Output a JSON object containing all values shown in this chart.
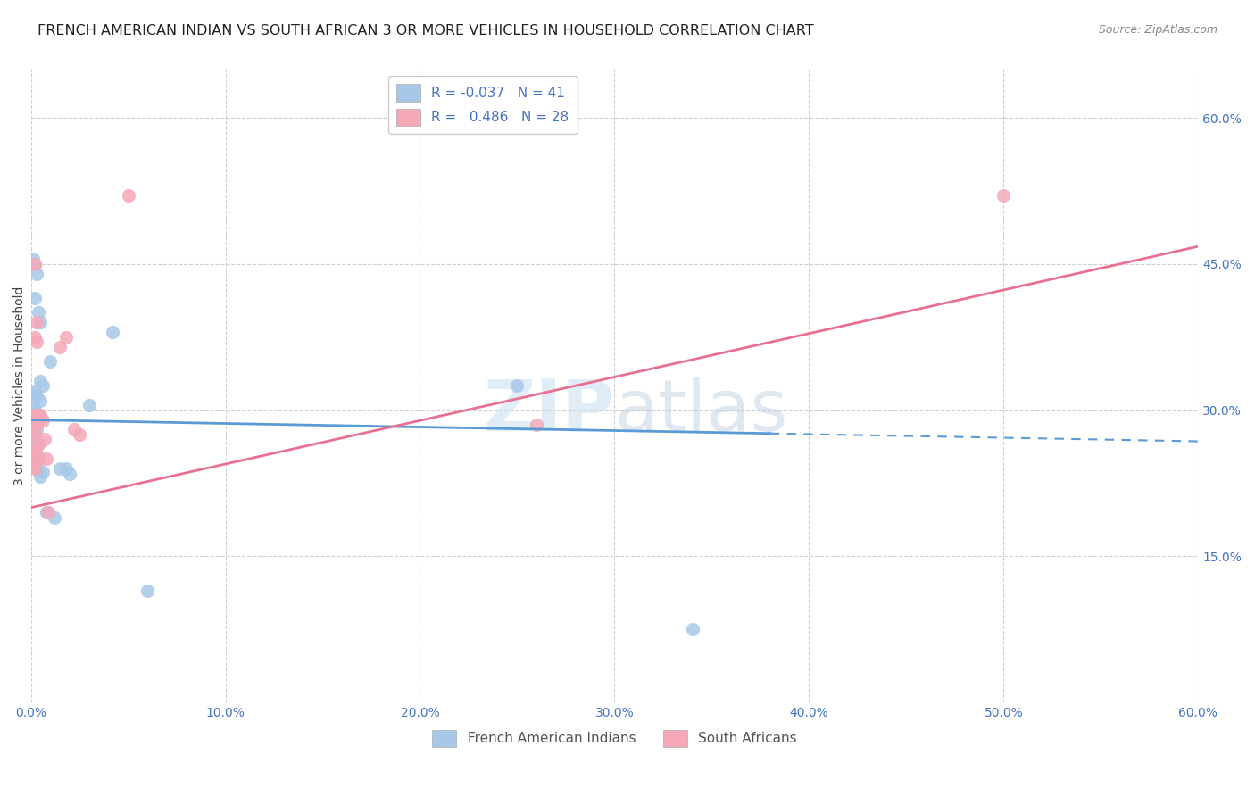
{
  "title": "FRENCH AMERICAN INDIAN VS SOUTH AFRICAN 3 OR MORE VEHICLES IN HOUSEHOLD CORRELATION CHART",
  "source": "Source: ZipAtlas.com",
  "ylabel": "3 or more Vehicles in Household",
  "ytick_values": [
    0.15,
    0.3,
    0.45,
    0.6
  ],
  "xtick_values": [
    0.0,
    0.1,
    0.2,
    0.3,
    0.4,
    0.5,
    0.6
  ],
  "xlim": [
    0.0,
    0.6
  ],
  "ylim": [
    0.0,
    0.65
  ],
  "watermark_zip": "ZIP",
  "watermark_atlas": "atlas",
  "legend_label_blue": "R = -0.037   N = 41",
  "legend_label_pink": "R =   0.486   N = 28",
  "legend_label1": "French American Indians",
  "legend_label2": "South Africans",
  "blue_color": "#a8c8e8",
  "pink_color": "#f4a8b8",
  "blue_line_color": "#5b9bd5",
  "pink_line_color": "#e87090",
  "blue_scatter": [
    [
      0.001,
      0.455
    ],
    [
      0.002,
      0.45
    ],
    [
      0.003,
      0.44
    ],
    [
      0.002,
      0.415
    ],
    [
      0.004,
      0.4
    ],
    [
      0.005,
      0.39
    ],
    [
      0.01,
      0.35
    ],
    [
      0.005,
      0.33
    ],
    [
      0.006,
      0.325
    ],
    [
      0.002,
      0.32
    ],
    [
      0.001,
      0.316
    ],
    [
      0.003,
      0.315
    ],
    [
      0.005,
      0.31
    ],
    [
      0.001,
      0.305
    ],
    [
      0.002,
      0.3
    ],
    [
      0.003,
      0.296
    ],
    [
      0.004,
      0.292
    ],
    [
      0.002,
      0.286
    ],
    [
      0.001,
      0.282
    ],
    [
      0.003,
      0.28
    ],
    [
      0.002,
      0.276
    ],
    [
      0.001,
      0.27
    ],
    [
      0.004,
      0.266
    ],
    [
      0.002,
      0.26
    ],
    [
      0.001,
      0.256
    ],
    [
      0.003,
      0.252
    ],
    [
      0.002,
      0.246
    ],
    [
      0.001,
      0.242
    ],
    [
      0.004,
      0.238
    ],
    [
      0.006,
      0.236
    ],
    [
      0.005,
      0.232
    ],
    [
      0.008,
      0.195
    ],
    [
      0.012,
      0.19
    ],
    [
      0.015,
      0.24
    ],
    [
      0.018,
      0.24
    ],
    [
      0.02,
      0.235
    ],
    [
      0.03,
      0.305
    ],
    [
      0.042,
      0.38
    ],
    [
      0.25,
      0.325
    ],
    [
      0.06,
      0.115
    ],
    [
      0.34,
      0.075
    ]
  ],
  "pink_scatter": [
    [
      0.001,
      0.295
    ],
    [
      0.002,
      0.45
    ],
    [
      0.003,
      0.39
    ],
    [
      0.001,
      0.28
    ],
    [
      0.002,
      0.375
    ],
    [
      0.003,
      0.37
    ],
    [
      0.004,
      0.295
    ],
    [
      0.002,
      0.26
    ],
    [
      0.005,
      0.295
    ],
    [
      0.006,
      0.29
    ],
    [
      0.003,
      0.285
    ],
    [
      0.002,
      0.275
    ],
    [
      0.007,
      0.27
    ],
    [
      0.004,
      0.265
    ],
    [
      0.001,
      0.26
    ],
    [
      0.003,
      0.255
    ],
    [
      0.008,
      0.25
    ],
    [
      0.005,
      0.25
    ],
    [
      0.001,
      0.245
    ],
    [
      0.002,
      0.24
    ],
    [
      0.009,
      0.195
    ],
    [
      0.015,
      0.365
    ],
    [
      0.018,
      0.375
    ],
    [
      0.022,
      0.28
    ],
    [
      0.025,
      0.275
    ],
    [
      0.05,
      0.52
    ],
    [
      0.26,
      0.285
    ],
    [
      0.5,
      0.52
    ]
  ],
  "blue_line_x": [
    0.0,
    0.6
  ],
  "blue_line_y": [
    0.29,
    0.268
  ],
  "blue_line_solid_end": 0.38,
  "pink_line_x": [
    0.0,
    0.6
  ],
  "pink_line_y": [
    0.2,
    0.468
  ],
  "title_fontsize": 11.5,
  "axis_label_fontsize": 10,
  "tick_fontsize": 10,
  "source_fontsize": 9,
  "legend_fontsize": 11
}
